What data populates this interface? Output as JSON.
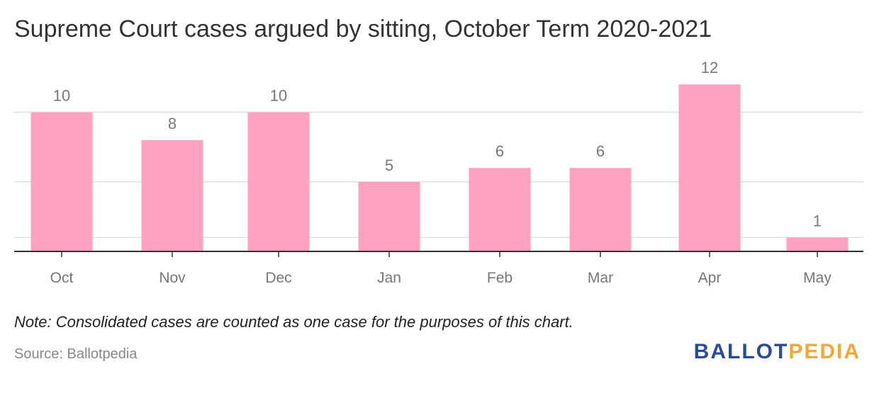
{
  "title": "Supreme Court cases argued by sitting, October Term 2020-2021",
  "note": "Note: Consolidated cases are counted as one case for the purposes of this chart.",
  "source": "Source: Ballotpedia",
  "logo": {
    "part1": "BALLOT",
    "part2": "PEDIA"
  },
  "colors": {
    "bar": "#ffa1c1",
    "text": "#333333",
    "label": "#777777",
    "grid": "#e0e0e0",
    "axis": "#333333",
    "logo_primary": "#2a4a9c",
    "logo_accent": "#f0a83a"
  },
  "chart_data": {
    "type": "bar",
    "title": "Supreme Court cases argued by sitting, October Term 2020-2021",
    "categories": [
      "Oct",
      "Nov",
      "Dec",
      "Jan",
      "Feb",
      "Mar",
      "Apr",
      "May"
    ],
    "values": [
      10,
      8,
      10,
      5,
      6,
      6,
      12,
      1
    ],
    "xlabel": "",
    "ylabel": "",
    "ylim": [
      0,
      12
    ],
    "gridlines": [
      1,
      5,
      10
    ],
    "grid": true,
    "data_labels": true
  }
}
